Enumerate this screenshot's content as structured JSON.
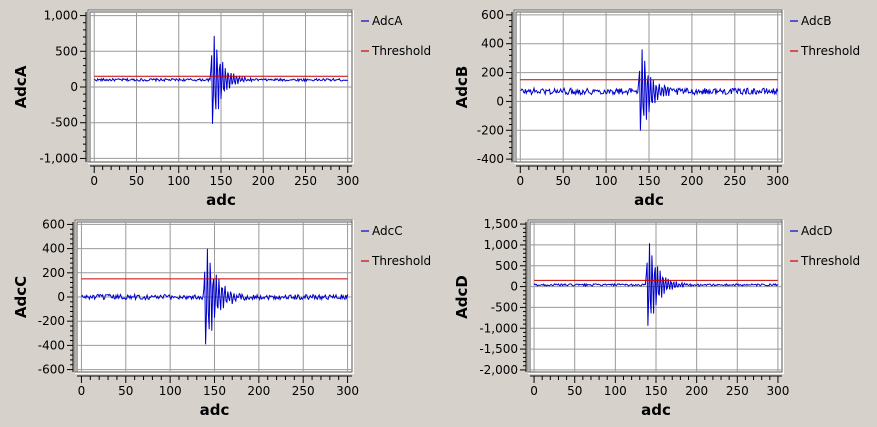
{
  "chart_data": [
    {
      "type": "line",
      "xlabel": "adc",
      "ylabel": "AdcA",
      "xlim": [
        -5,
        305
      ],
      "ylim": [
        -1050,
        1050
      ],
      "xticks": [
        0,
        50,
        100,
        150,
        200,
        250,
        300
      ],
      "yticks": [
        1000,
        500,
        0,
        -500,
        -1000
      ],
      "ytick_labels": [
        "1,000",
        "500",
        "0",
        "-500",
        "-1,000"
      ],
      "grid": true,
      "legend_position": "right",
      "series": [
        {
          "name": "AdcA",
          "color": "#0000cc",
          "baseline": 100,
          "noise": 18,
          "burst_amplitude": 900,
          "burst_start": 138,
          "decay": 0.09
        },
        {
          "name": "Threshold",
          "color": "#cc0000",
          "constant": 150
        }
      ]
    },
    {
      "type": "line",
      "xlabel": "adc",
      "ylabel": "AdcB",
      "xlim": [
        -5,
        305
      ],
      "ylim": [
        -420,
        620
      ],
      "xticks": [
        0,
        50,
        100,
        150,
        200,
        250,
        300
      ],
      "yticks": [
        600,
        400,
        200,
        0,
        -200,
        -400
      ],
      "ytick_labels": [
        "600",
        "400",
        "200",
        "0",
        "-200",
        "-400"
      ],
      "grid": true,
      "legend_position": "right",
      "series": [
        {
          "name": "AdcB",
          "color": "#0000cc",
          "baseline": 70,
          "noise": 22,
          "burst_amplitude": 420,
          "burst_start": 138,
          "decay": 0.09
        },
        {
          "name": "Threshold",
          "color": "#cc0000",
          "constant": 150
        }
      ]
    },
    {
      "type": "line",
      "xlabel": "adc",
      "ylabel": "AdcC",
      "xlim": [
        -5,
        305
      ],
      "ylim": [
        -620,
        620
      ],
      "xticks": [
        0,
        50,
        100,
        150,
        200,
        250,
        300
      ],
      "yticks": [
        600,
        400,
        200,
        0,
        -200,
        -400,
        -600
      ],
      "ytick_labels": [
        "600",
        "400",
        "200",
        "0",
        "-200",
        "-400",
        "-600"
      ],
      "grid": true,
      "legend_position": "right",
      "series": [
        {
          "name": "AdcC",
          "color": "#0000cc",
          "baseline": 0,
          "noise": 22,
          "burst_amplitude": 540,
          "burst_start": 138,
          "decay": 0.08
        },
        {
          "name": "Threshold",
          "color": "#cc0000",
          "constant": 150
        }
      ]
    },
    {
      "type": "line",
      "xlabel": "adc",
      "ylabel": "AdcD",
      "xlim": [
        -5,
        305
      ],
      "ylim": [
        -2050,
        1550
      ],
      "xticks": [
        0,
        50,
        100,
        150,
        200,
        250,
        300
      ],
      "yticks": [
        1500,
        1000,
        500,
        0,
        -500,
        -1000,
        -1500,
        -2000
      ],
      "ytick_labels": [
        "1,500",
        "1,000",
        "500",
        "0",
        "-500",
        "-1,000",
        "-1,500",
        "-2,000"
      ],
      "grid": true,
      "legend_position": "right",
      "series": [
        {
          "name": "AdcD",
          "color": "#0000cc",
          "baseline": 40,
          "noise": 25,
          "burst_amplitude": 1400,
          "burst_start": 138,
          "decay": 0.08
        },
        {
          "name": "Threshold",
          "color": "#cc0000",
          "constant": 150
        }
      ]
    }
  ]
}
